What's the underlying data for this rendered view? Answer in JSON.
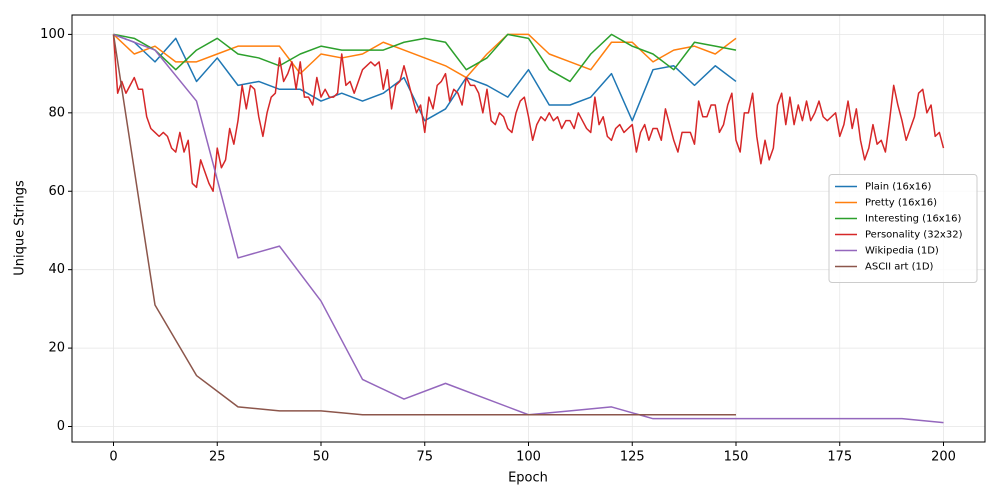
{
  "chart_data": {
    "type": "line",
    "x_label": "Epoch",
    "y_label": "Unique Strings",
    "xlim": [
      -10,
      210
    ],
    "ylim": [
      -3.95,
      104.95
    ],
    "xticks": [
      0,
      25,
      50,
      75,
      100,
      125,
      150,
      175,
      200
    ],
    "yticks": [
      0,
      20,
      40,
      60,
      80,
      100
    ],
    "grid": true,
    "legend": "center right",
    "series": [
      {
        "name": "Plain (16x16)",
        "color": "#1f77b4",
        "x": [
          0,
          5,
          10,
          15,
          20,
          25,
          30,
          35,
          40,
          45,
          50,
          55,
          60,
          65,
          70,
          75,
          80,
          85,
          90,
          95,
          100,
          105,
          110,
          115,
          120,
          125,
          130,
          135,
          140,
          145,
          150
        ],
        "values": [
          100,
          98,
          93,
          99,
          88,
          94,
          87,
          88,
          86,
          86,
          83,
          85,
          83,
          85,
          89,
          78,
          81,
          89,
          87,
          84,
          91,
          82,
          82,
          84,
          90,
          78,
          91,
          92,
          87,
          92,
          88
        ]
      },
      {
        "name": "Pretty (16x16)",
        "color": "#ff7f0e",
        "x": [
          0,
          5,
          10,
          15,
          20,
          25,
          30,
          35,
          40,
          45,
          50,
          55,
          60,
          65,
          70,
          75,
          80,
          85,
          90,
          95,
          100,
          105,
          110,
          115,
          120,
          125,
          130,
          135,
          140,
          145,
          150
        ],
        "values": [
          100,
          95,
          97,
          93,
          93,
          95,
          97,
          97,
          97,
          90,
          95,
          94,
          95,
          98,
          96,
          94,
          92,
          89,
          95,
          100,
          100,
          95,
          93,
          91,
          98,
          98,
          93,
          96,
          97,
          95,
          99
        ]
      },
      {
        "name": "Interesting (16x16)",
        "color": "#2ca02c",
        "x": [
          0,
          5,
          10,
          15,
          20,
          25,
          30,
          35,
          40,
          45,
          50,
          55,
          60,
          65,
          70,
          75,
          80,
          85,
          90,
          95,
          100,
          105,
          110,
          115,
          120,
          125,
          130,
          135,
          140,
          145,
          150
        ],
        "values": [
          100,
          99,
          96,
          91,
          96,
          99,
          95,
          94,
          92,
          95,
          97,
          96,
          96,
          96,
          98,
          99,
          98,
          91,
          94,
          100,
          99,
          91,
          88,
          95,
          100,
          97,
          95,
          91,
          98,
          97,
          96
        ]
      },
      {
        "name": "Personality (32x32)",
        "color": "#d62728",
        "x": [
          0,
          1,
          2,
          3,
          4,
          5,
          6,
          7,
          8,
          9,
          10,
          11,
          12,
          13,
          14,
          15,
          16,
          17,
          18,
          19,
          20,
          21,
          22,
          23,
          24,
          25,
          26,
          27,
          28,
          29,
          30,
          31,
          32,
          33,
          34,
          35,
          36,
          37,
          38,
          39,
          40,
          41,
          42,
          43,
          44,
          45,
          46,
          47,
          48,
          49,
          50,
          51,
          52,
          53,
          54,
          55,
          56,
          57,
          58,
          59,
          60,
          61,
          62,
          63,
          64,
          65,
          66,
          67,
          68,
          69,
          70,
          71,
          72,
          73,
          74,
          75,
          76,
          77,
          78,
          79,
          80,
          81,
          82,
          83,
          84,
          85,
          86,
          87,
          88,
          89,
          90,
          91,
          92,
          93,
          94,
          95,
          96,
          97,
          98,
          99,
          100,
          101,
          102,
          103,
          104,
          105,
          106,
          107,
          108,
          109,
          110,
          111,
          112,
          113,
          114,
          115,
          116,
          117,
          118,
          119,
          120,
          121,
          122,
          123,
          124,
          125,
          126,
          127,
          128,
          129,
          130,
          131,
          132,
          133,
          134,
          135,
          136,
          137,
          138,
          139,
          140,
          141,
          142,
          143,
          144,
          145,
          146,
          147,
          148,
          149,
          150,
          151,
          152,
          153,
          154,
          155,
          156,
          157,
          158,
          159,
          160,
          161,
          162,
          163,
          164,
          165,
          166,
          167,
          168,
          169,
          170,
          171,
          172,
          173,
          174,
          175,
          176,
          177,
          178,
          179,
          180,
          181,
          182,
          183,
          184,
          185,
          186,
          187,
          188,
          189,
          190,
          191,
          192,
          193,
          194,
          195,
          196,
          197,
          198,
          199,
          200
        ],
        "values": [
          100,
          85,
          88,
          85,
          87,
          89,
          86,
          86,
          79,
          76,
          75,
          74,
          75,
          74,
          71,
          70,
          75,
          70,
          73,
          62,
          61,
          68,
          65,
          62,
          60,
          71,
          66,
          68,
          76,
          72,
          78,
          87,
          81,
          87,
          86,
          79,
          74,
          80,
          84,
          85,
          94,
          88,
          90,
          93,
          86,
          93,
          84,
          84,
          82,
          89,
          84,
          86,
          84,
          84,
          85,
          95,
          87,
          88,
          85,
          88,
          91,
          92,
          93,
          92,
          93,
          86,
          91,
          81,
          87,
          88,
          92,
          88,
          84,
          80,
          82,
          75,
          84,
          81,
          87,
          88,
          90,
          83,
          86,
          85,
          82,
          89,
          87,
          87,
          85,
          80,
          86,
          78,
          77,
          80,
          79,
          76,
          75,
          80,
          83,
          84,
          79,
          73,
          77,
          79,
          78,
          80,
          78,
          79,
          76,
          78,
          78,
          76,
          80,
          78,
          76,
          75,
          84,
          77,
          79,
          74,
          73,
          76,
          77,
          75,
          76,
          77,
          70,
          75,
          77,
          73,
          76,
          76,
          73,
          81,
          77,
          73,
          70,
          75,
          75,
          75,
          72,
          83,
          79,
          79,
          82,
          82,
          75,
          77,
          82,
          85,
          73,
          70,
          80,
          80,
          85,
          74,
          67,
          73,
          68,
          71,
          82,
          85,
          77,
          84,
          77,
          82,
          78,
          83,
          78,
          80,
          83,
          79,
          78,
          79,
          80,
          74,
          77,
          83,
          76,
          81,
          73,
          68,
          71,
          77,
          72,
          73,
          70,
          78,
          87,
          82,
          78,
          73,
          76,
          79,
          85,
          86,
          80,
          82,
          74,
          75,
          71
        ]
      },
      {
        "name": "Wikipedia (1D)",
        "color": "#9467bd",
        "x": [
          0,
          10,
          20,
          30,
          40,
          50,
          60,
          70,
          80,
          90,
          100,
          110,
          120,
          130,
          140,
          150,
          160,
          170,
          180,
          190,
          200
        ],
        "values": [
          100,
          96,
          83,
          43,
          46,
          32,
          12,
          7,
          11,
          7,
          3,
          4,
          5,
          2,
          2,
          2,
          2,
          2,
          2,
          2,
          1
        ]
      },
      {
        "name": "ASCII art (1D)",
        "color": "#8c564b",
        "x": [
          0,
          10,
          20,
          30,
          40,
          50,
          60,
          70,
          80,
          90,
          100,
          110,
          120,
          130,
          140,
          150
        ],
        "values": [
          100,
          31,
          13,
          5,
          4,
          4,
          3,
          3,
          3,
          3,
          3,
          3,
          3,
          3,
          3,
          3
        ]
      }
    ]
  }
}
